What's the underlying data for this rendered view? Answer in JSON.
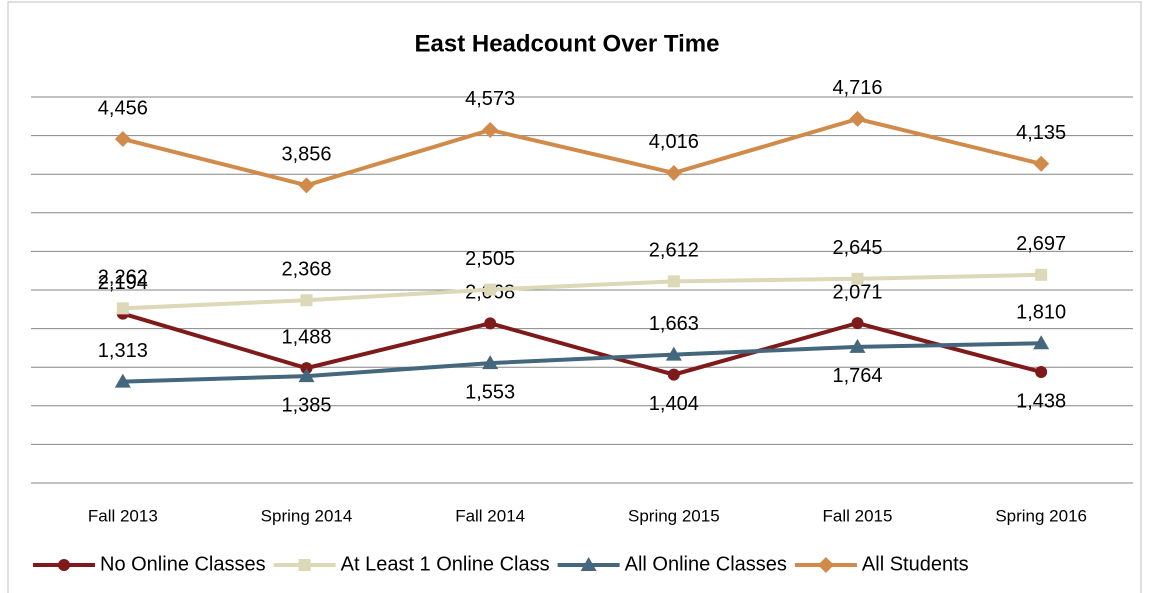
{
  "chart_data": {
    "type": "line",
    "title": "East Headcount Over Time",
    "categories": [
      "Fall 2013",
      "Spring 2014",
      "Fall 2014",
      "Spring 2015",
      "Fall 2015",
      "Spring 2016"
    ],
    "series": [
      {
        "name": "No Online Classes",
        "color": "#7f1a1a",
        "marker": "circle",
        "values": [
          2194,
          1488,
          2068,
          1404,
          2071,
          1438
        ],
        "value_labels": [
          "2,194",
          "1,488",
          "2,068",
          "1,404",
          "2,071",
          "1,438"
        ]
      },
      {
        "name": "At Least 1 Online Class",
        "color": "#ddd8b8",
        "marker": "square",
        "values": [
          2262,
          2368,
          2505,
          2612,
          2645,
          2697
        ],
        "value_labels": [
          "2,262",
          "2,368",
          "2,505",
          "2,612",
          "2,645",
          "2,697"
        ]
      },
      {
        "name": "All Online Classes",
        "color": "#45677d",
        "marker": "triangle",
        "values": [
          1313,
          1385,
          1553,
          1663,
          1764,
          1810
        ],
        "value_labels": [
          "1,313",
          "1,385",
          "1,553",
          "1,663",
          "1,764",
          "1,810"
        ]
      },
      {
        "name": "All Students",
        "color": "#d08b4b",
        "marker": "diamond",
        "values": [
          4456,
          3856,
          4573,
          4016,
          4716,
          4135
        ],
        "value_labels": [
          "4,456",
          "3,856",
          "4,573",
          "4,016",
          "4,716",
          "4,135"
        ]
      }
    ],
    "ylim": [
      0,
      5000
    ],
    "yticks": [
      0,
      500,
      1000,
      1500,
      2000,
      2500,
      3000,
      3500,
      4000,
      4500,
      5000
    ],
    "grid": true,
    "legend": "bottom"
  }
}
